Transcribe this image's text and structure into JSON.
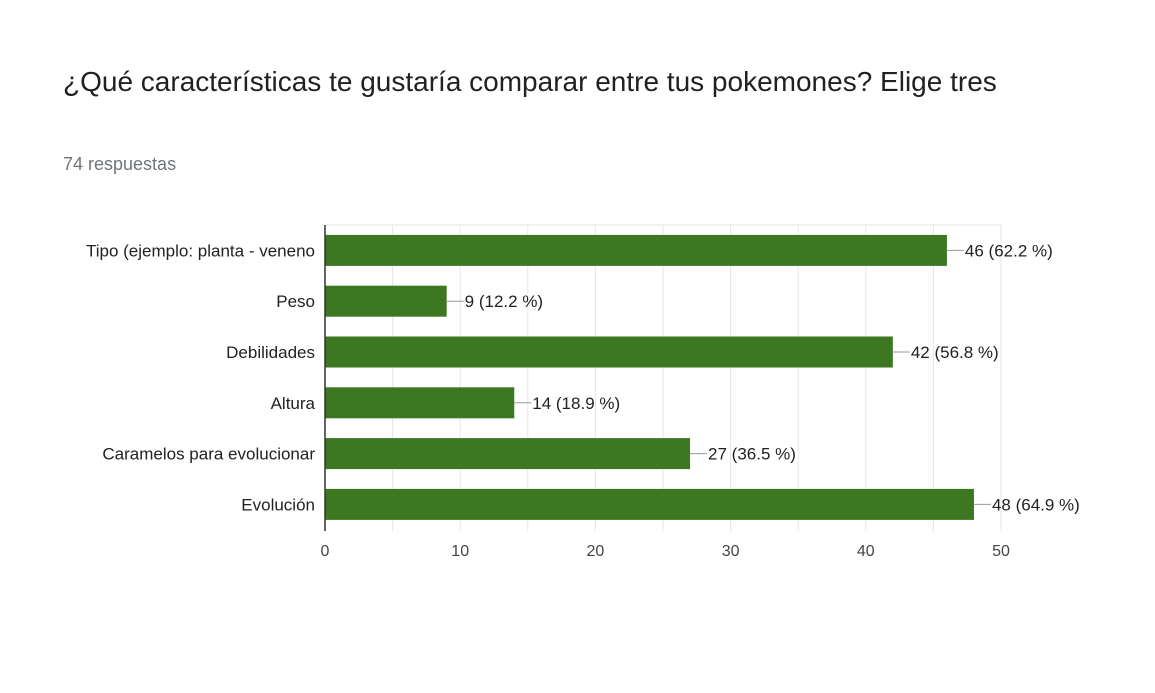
{
  "header": {
    "question": "¿Qué características te gustaría comparar entre tus pokemones? Elige tres",
    "responses": "74 respuestas"
  },
  "colors": {
    "bar": "#3e7722",
    "grid": "#e6e6e6",
    "axis": "#333333"
  },
  "chart_data": {
    "type": "bar",
    "orientation": "horizontal",
    "title": "",
    "xlabel": "",
    "ylabel": "",
    "categories": [
      "Tipo (ejemplo: planta - veneno",
      "Peso",
      "Debilidades",
      "Altura",
      "Caramelos para evolucionar",
      "Evolución"
    ],
    "values": [
      46,
      9,
      42,
      14,
      27,
      48
    ],
    "data_labels": [
      "46 (62.2 %)",
      "9 (12.2 %)",
      "42 (56.8 %)",
      "14 (18.9 %)",
      "27 (36.5 %)",
      "48 (64.9 %)"
    ],
    "xlim": [
      0,
      50
    ],
    "xticks": [
      "0",
      "10",
      "20",
      "30",
      "40",
      "50"
    ],
    "grid": true,
    "legend": "none"
  }
}
